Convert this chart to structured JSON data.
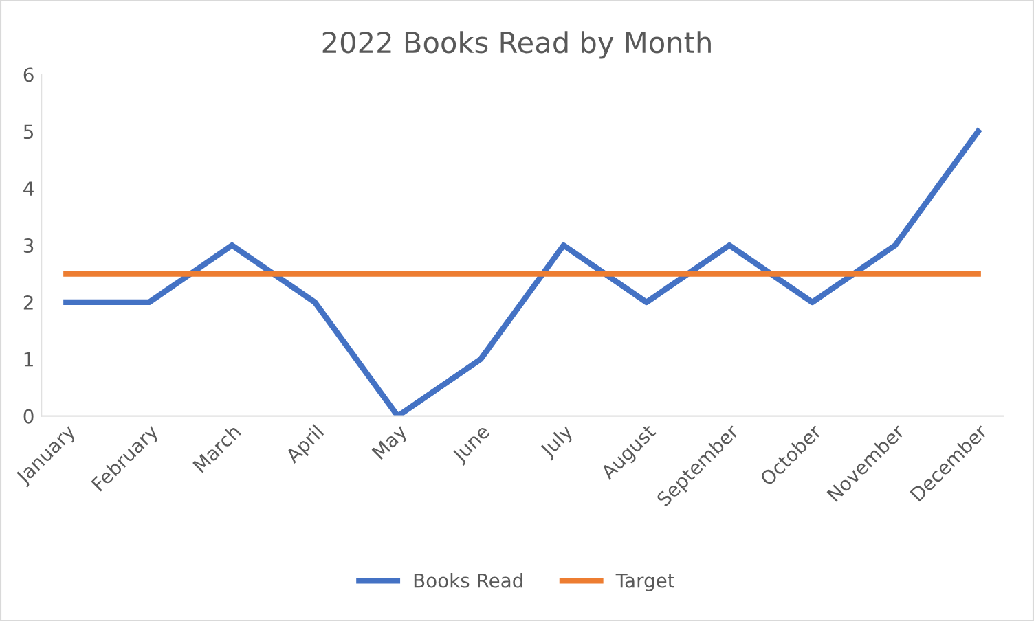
{
  "chart_data": {
    "type": "line",
    "title": "2022 Books Read by Month",
    "categories": [
      "January",
      "February",
      "March",
      "April",
      "May",
      "June",
      "July",
      "August",
      "September",
      "October",
      "November",
      "December"
    ],
    "series": [
      {
        "name": "Books Read",
        "color": "#4472c4",
        "values": [
          2,
          2,
          3,
          2,
          0,
          1,
          3,
          2,
          3,
          2,
          3,
          5
        ]
      },
      {
        "name": "Target",
        "color": "#ed7d31",
        "values": [
          2.5,
          2.5,
          2.5,
          2.5,
          2.5,
          2.5,
          2.5,
          2.5,
          2.5,
          2.5,
          2.5,
          2.5
        ]
      }
    ],
    "ylim": [
      0,
      6
    ],
    "yticks": [
      0,
      1,
      2,
      3,
      4,
      5,
      6
    ],
    "grid": false,
    "legend": "bottom",
    "marker": "none",
    "line_style": "solid"
  }
}
